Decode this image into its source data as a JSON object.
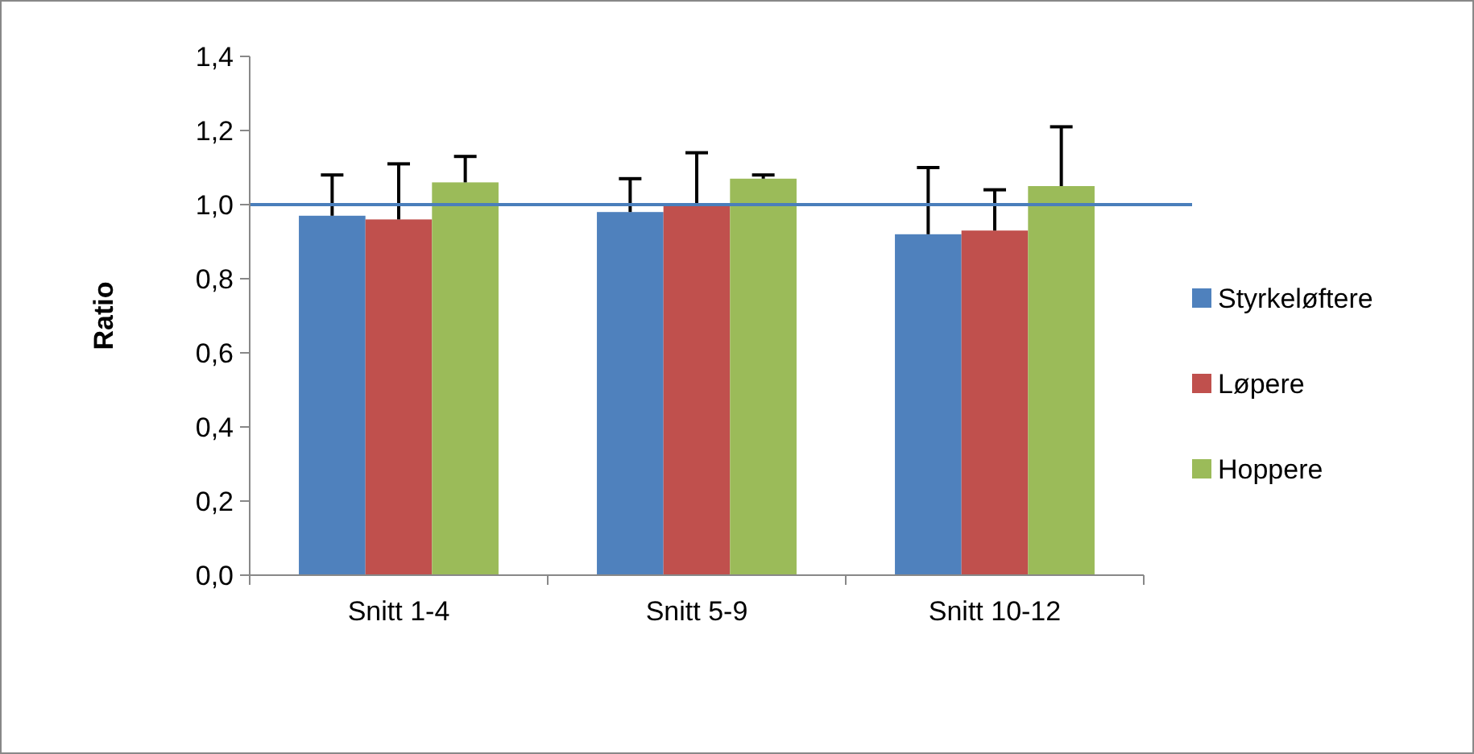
{
  "chart_data": {
    "type": "bar",
    "ylabel": "Ratio",
    "categories": [
      "Snitt 1-4",
      "Snitt 5-9",
      "Snitt 10-12"
    ],
    "series": [
      {
        "name": "Styrkeløftere",
        "color": "#4f81bd",
        "values": [
          0.97,
          0.98,
          0.92
        ],
        "errors": [
          [
            0.97,
            1.08
          ],
          [
            0.98,
            1.07
          ],
          [
            0.92,
            1.1
          ]
        ]
      },
      {
        "name": "Løpere",
        "color": "#c0504d",
        "values": [
          0.96,
          1.0,
          0.93
        ],
        "errors": [
          [
            0.96,
            1.11
          ],
          [
            1.0,
            1.14
          ],
          [
            0.93,
            1.04
          ]
        ]
      },
      {
        "name": "Hoppere",
        "color": "#9bbb59",
        "values": [
          1.06,
          1.07,
          1.05
        ],
        "errors": [
          [
            1.06,
            1.13
          ],
          [
            1.07,
            1.08
          ],
          [
            1.05,
            1.21
          ]
        ]
      }
    ],
    "ylim": [
      0,
      1.4
    ],
    "yticks": [
      {
        "value": 0,
        "label": "0,0"
      },
      {
        "value": 0.2,
        "label": "0,2"
      },
      {
        "value": 0.4,
        "label": "0,4"
      },
      {
        "value": 0.6,
        "label": "0,6"
      },
      {
        "value": 0.8,
        "label": "0,8"
      },
      {
        "value": 1,
        "label": "1,0"
      },
      {
        "value": 1.2,
        "label": "1,2"
      },
      {
        "value": 1.4,
        "label": "1,4"
      }
    ],
    "ref_lines": [
      {
        "axis": "y",
        "value": 1.0,
        "color": "#4a7ebb"
      }
    ],
    "legend": "right",
    "grid": false
  }
}
